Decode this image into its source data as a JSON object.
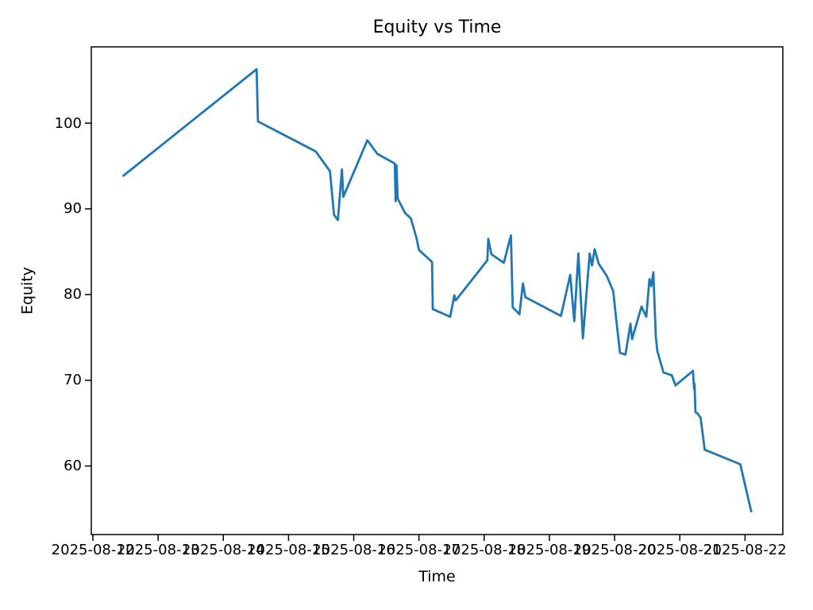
{
  "window": {
    "background": "#ffffff"
  },
  "chart_data": {
    "type": "line",
    "title": "Equity vs Time",
    "xlabel": "Time",
    "ylabel": "Equity",
    "line_color": "#1f77b4",
    "axis_color": "#000000",
    "grid": false,
    "legend": null,
    "x_tick_labels": [
      "2025-08-12",
      "2025-08-13",
      "2025-08-14",
      "2025-08-15",
      "2025-08-16",
      "2025-08-17",
      "2025-08-18",
      "2025-08-19",
      "2025-08-20",
      "2025-08-21",
      "2025-08-22"
    ],
    "y_tick_labels": [
      60,
      70,
      80,
      90,
      100
    ],
    "xlim": [
      "2025-08-11T23:25",
      "2025-08-22T13:55"
    ],
    "ylim": [
      52.0,
      108.9
    ],
    "series": [
      {
        "name": "equity",
        "points": [
          [
            "2025-08-12T11:00",
            93.8
          ],
          [
            "2025-08-14T12:15",
            106.3
          ],
          [
            "2025-08-14T12:45",
            100.2
          ],
          [
            "2025-08-15T10:00",
            96.7
          ],
          [
            "2025-08-15T15:15",
            94.4
          ],
          [
            "2025-08-15T16:45",
            89.3
          ],
          [
            "2025-08-15T18:10",
            88.7
          ],
          [
            "2025-08-15T19:40",
            94.6
          ],
          [
            "2025-08-15T20:10",
            91.4
          ],
          [
            "2025-08-16T05:00",
            98.0
          ],
          [
            "2025-08-16T08:45",
            96.4
          ],
          [
            "2025-08-16T15:05",
            95.3
          ],
          [
            "2025-08-16T15:25",
            90.9
          ],
          [
            "2025-08-16T15:45",
            95.1
          ],
          [
            "2025-08-16T16:10",
            91.2
          ],
          [
            "2025-08-16T18:55",
            89.5
          ],
          [
            "2025-08-16T21:00",
            88.9
          ],
          [
            "2025-08-16T23:00",
            86.7
          ],
          [
            "2025-08-17T00:00",
            85.2
          ],
          [
            "2025-08-17T04:50",
            83.8
          ],
          [
            "2025-08-17T05:05",
            78.3
          ],
          [
            "2025-08-17T11:30",
            77.4
          ],
          [
            "2025-08-17T13:00",
            79.9
          ],
          [
            "2025-08-17T13:30",
            79.3
          ],
          [
            "2025-08-18T01:10",
            84.0
          ],
          [
            "2025-08-18T01:30",
            86.5
          ],
          [
            "2025-08-18T02:40",
            84.7
          ],
          [
            "2025-08-18T07:15",
            83.7
          ],
          [
            "2025-08-18T09:50",
            86.9
          ],
          [
            "2025-08-18T10:30",
            78.5
          ],
          [
            "2025-08-18T13:00",
            77.7
          ],
          [
            "2025-08-18T14:15",
            81.3
          ],
          [
            "2025-08-18T15:10",
            79.7
          ],
          [
            "2025-08-19T04:15",
            77.5
          ],
          [
            "2025-08-19T07:40",
            82.3
          ],
          [
            "2025-08-19T09:10",
            76.9
          ],
          [
            "2025-08-19T10:40",
            84.8
          ],
          [
            "2025-08-19T12:20",
            74.9
          ],
          [
            "2025-08-19T14:50",
            84.8
          ],
          [
            "2025-08-19T15:40",
            83.4
          ],
          [
            "2025-08-19T16:40",
            85.3
          ],
          [
            "2025-08-19T18:10",
            83.6
          ],
          [
            "2025-08-19T21:05",
            82.2
          ],
          [
            "2025-08-19T23:30",
            80.4
          ],
          [
            "2025-08-20T00:30",
            77.4
          ],
          [
            "2025-08-20T02:00",
            73.2
          ],
          [
            "2025-08-20T04:00",
            73.0
          ],
          [
            "2025-08-20T05:50",
            76.6
          ],
          [
            "2025-08-20T06:25",
            74.8
          ],
          [
            "2025-08-20T09:55",
            78.6
          ],
          [
            "2025-08-20T11:40",
            77.4
          ],
          [
            "2025-08-20T12:50",
            81.8
          ],
          [
            "2025-08-20T13:30",
            81.0
          ],
          [
            "2025-08-20T14:15",
            82.6
          ],
          [
            "2025-08-20T15:10",
            75.1
          ],
          [
            "2025-08-20T15:45",
            73.4
          ],
          [
            "2025-08-20T18:00",
            70.9
          ],
          [
            "2025-08-20T21:00",
            70.6
          ],
          [
            "2025-08-20T22:25",
            69.4
          ],
          [
            "2025-08-21T04:50",
            71.1
          ],
          [
            "2025-08-21T05:15",
            69.0
          ],
          [
            "2025-08-21T05:25",
            69.6
          ],
          [
            "2025-08-21T05:45",
            66.3
          ],
          [
            "2025-08-21T06:35",
            66.1
          ],
          [
            "2025-08-21T07:40",
            65.6
          ],
          [
            "2025-08-21T09:10",
            61.9
          ],
          [
            "2025-08-21T22:15",
            60.2
          ],
          [
            "2025-08-22T02:20",
            54.6
          ]
        ]
      }
    ]
  }
}
